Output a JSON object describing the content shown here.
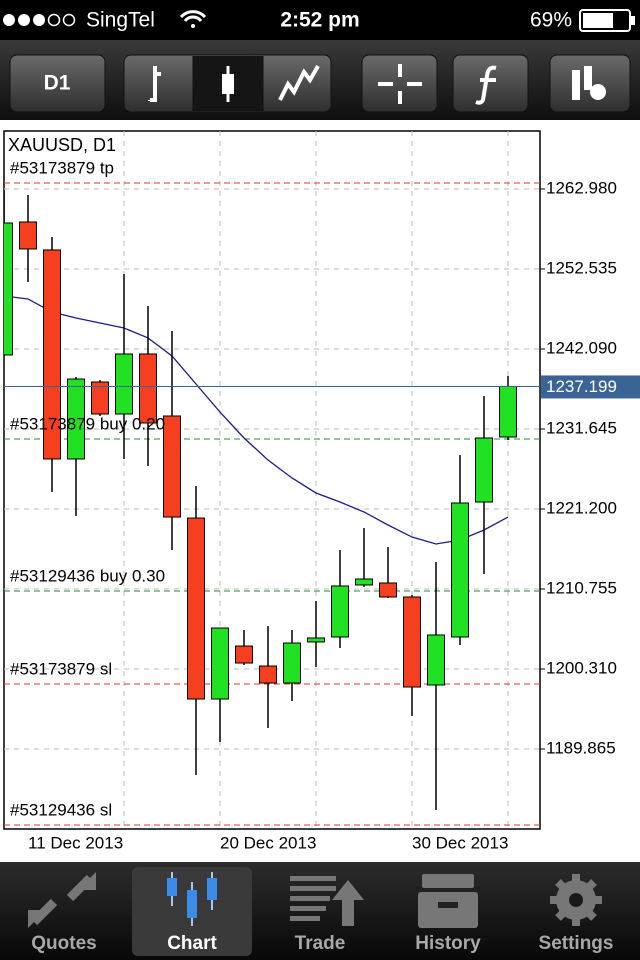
{
  "status_bar": {
    "carrier": "SingTel",
    "time": "2:52 pm",
    "battery": "69%"
  },
  "toolbar": {
    "timeframe": "D1"
  },
  "chart_data": {
    "type": "candlestick",
    "title": "XAUUSD, D1",
    "categories": [
      null,
      "11 Dec 2013",
      null,
      null,
      null,
      null,
      null,
      null,
      null,
      "20 Dec 2013",
      null,
      null,
      null,
      null,
      null,
      null,
      null,
      "30 Dec 2013",
      null,
      null,
      null,
      null
    ],
    "open": [
      1241.31,
      1258.67,
      1255.02,
      1227.73,
      1237.78,
      1233.6,
      1241.44,
      1233.34,
      1220.02,
      1196.39,
      1203.31,
      1200.7,
      1198.48,
      1203.84,
      1204.49,
      1211.28,
      1211.54,
      1209.71,
      1198.22,
      1204.49,
      1222.11,
      1230.6
    ],
    "high": [
      1262.85,
      1262.2,
      1256.71,
      1238.43,
      1238.04,
      1251.88,
      1247.7,
      1244.44,
      1224.2,
      1205.66,
      1205.4,
      1205.92,
      1205.4,
      1209.19,
      1215.85,
      1218.72,
      1216.24,
      1209.97,
      1214.28,
      1228.25,
      1235.95,
      1238.56
    ],
    "low": [
      1241.18,
      1250.84,
      1223.42,
      1220.29,
      1233.34,
      1227.73,
      1226.81,
      1215.85,
      1186.47,
      1190.78,
      1200.83,
      1192.61,
      1196.13,
      1200.57,
      1203.05,
      1211.02,
      1209.58,
      1194.17,
      1181.9,
      1203.44,
      1212.71,
      1230.21
    ],
    "close": [
      1258.54,
      1255.15,
      1227.73,
      1238.17,
      1233.6,
      1241.44,
      1232.43,
      1220.15,
      1196.39,
      1205.66,
      1201.09,
      1198.48,
      1203.7,
      1204.36,
      1211.15,
      1212.06,
      1209.71,
      1197.96,
      1204.75,
      1221.98,
      1230.47,
      1237.2
    ],
    "up_color": "#22e022",
    "down_color": "#f4401e",
    "moving_average": {
      "color": "#1c1c8c",
      "values": [
        1249.01,
        1248.62,
        1246.92,
        1246.14,
        1245.48,
        1244.83,
        1243.53,
        1241.18,
        1237.52,
        1233.86,
        1230.47,
        1227.6,
        1225.25,
        1223.29,
        1222.11,
        1220.81,
        1219.11,
        1217.54,
        1216.63,
        1217.15,
        1218.46,
        1220.15
      ]
    },
    "ylim": [
      1179.42,
      1270.55
    ],
    "yticks": [
      {
        "value": 1262.98,
        "label": "1262.980"
      },
      1252.535,
      {
        "value": 1242.09,
        "label": "1242.090"
      },
      1231.645,
      {
        "value": 1221.2,
        "label": "1221.200"
      },
      1210.755,
      {
        "value": 1200.31,
        "label": "1200.310"
      },
      1189.865
    ],
    "grid": true,
    "bid": {
      "value": 1237.199,
      "label": "1237.199",
      "color": "#3a6496"
    },
    "levels": [
      {
        "text": "#53173879 tp",
        "value": 1263.76,
        "color": "#e03a2a"
      },
      {
        "text": "#53173879 buy 0.20",
        "value": 1230.34,
        "color": "#2a8a3a"
      },
      {
        "text": "#53129436 buy 0.30",
        "value": 1210.5,
        "color": "#2a8a3a"
      },
      {
        "text": "#53173879 sl",
        "value": 1198.35,
        "color": "#e03a2a"
      },
      {
        "text": "#53129436 sl",
        "value": 1179.94,
        "color": "#e03a2a"
      }
    ]
  },
  "tab_bar": {
    "tabs": [
      "Quotes",
      "Chart",
      "Trade",
      "History",
      "Settings"
    ],
    "active": "Chart"
  }
}
